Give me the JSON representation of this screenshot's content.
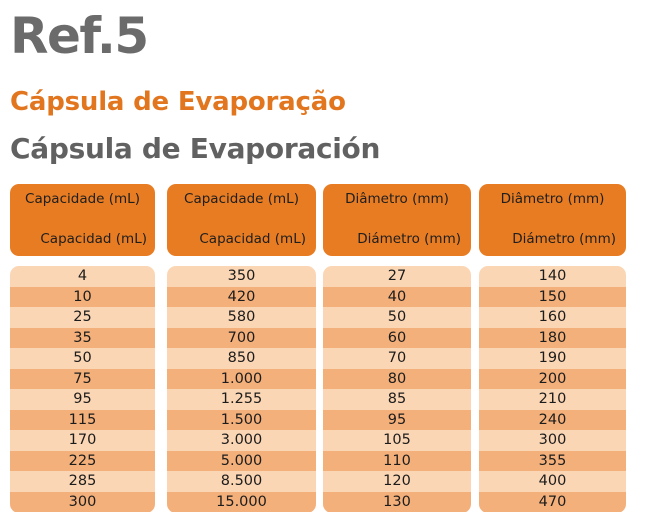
{
  "title": "Ref.5",
  "subtitle_pt": "Cápsula de Evaporação",
  "subtitle_es": "Cápsula de Evaporación",
  "colors": {
    "header": "#e87c22",
    "row_light": "#fbd6b4",
    "row_dark": "#f4b07a",
    "title": "#6b6b6b",
    "accent": "#e2761f"
  },
  "columns": [
    {
      "header_pt": "Capacidade (mL)",
      "header_es": "Capacidad (mL)",
      "values": [
        "4",
        "10",
        "25",
        "35",
        "50",
        "75",
        "95",
        "115",
        "170",
        "225",
        "285",
        "300"
      ]
    },
    {
      "header_pt": "Capacidade (mL)",
      "header_es": "Capacidad (mL)",
      "values": [
        "350",
        "420",
        "580",
        "700",
        "850",
        "1.000",
        "1.255",
        "1.500",
        "3.000",
        "5.000",
        "8.500",
        "15.000"
      ]
    },
    {
      "header_pt": "Diâmetro (mm)",
      "header_es": "Diámetro (mm)",
      "values": [
        "27",
        "40",
        "50",
        "60",
        "70",
        "80",
        "85",
        "95",
        "105",
        "110",
        "120",
        "130"
      ]
    },
    {
      "header_pt": "Diâmetro (mm)",
      "header_es": "Diámetro (mm)",
      "values": [
        "140",
        "150",
        "160",
        "180",
        "190",
        "200",
        "210",
        "240",
        "300",
        "355",
        "400",
        "470"
      ]
    }
  ]
}
